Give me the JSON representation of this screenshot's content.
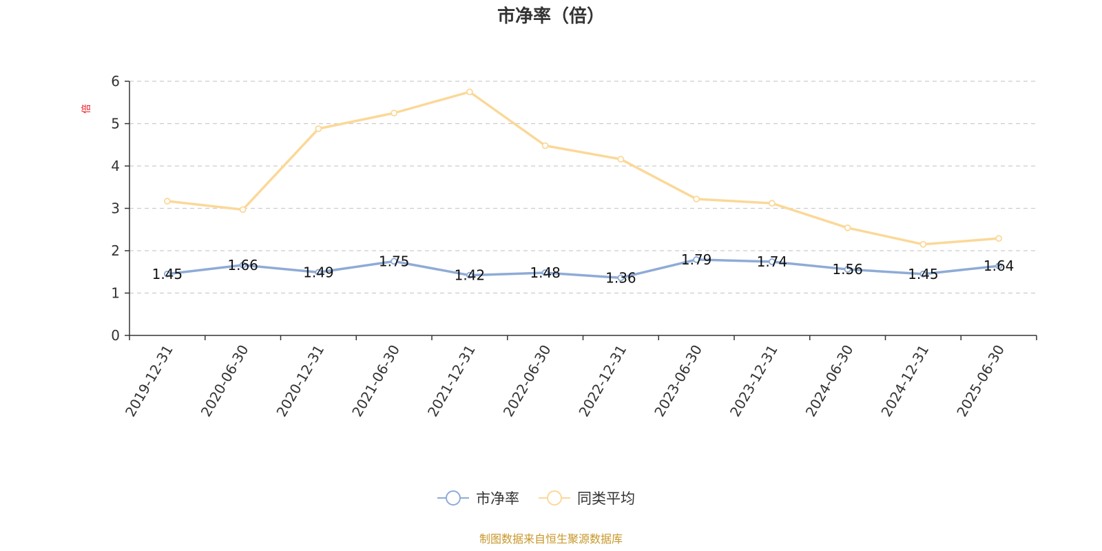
{
  "chart_data": {
    "type": "line",
    "title": "市净率（倍）",
    "ylabel": "倍",
    "xlabel": "",
    "ylim": [
      0,
      6
    ],
    "yticks": [
      0,
      1,
      2,
      3,
      4,
      5,
      6
    ],
    "grid": true,
    "legend_position": "bottom-center",
    "categories": [
      "2019-12-31",
      "2020-06-30",
      "2020-12-31",
      "2021-06-30",
      "2021-12-31",
      "2022-06-30",
      "2022-12-31",
      "2023-06-30",
      "2023-12-31",
      "2024-06-30",
      "2024-12-31",
      "2025-06-30"
    ],
    "series": [
      {
        "name": "市净率",
        "color": "#8eabd6",
        "values": [
          1.45,
          1.66,
          1.49,
          1.75,
          1.42,
          1.48,
          1.36,
          1.79,
          1.74,
          1.56,
          1.45,
          1.64
        ],
        "show_labels": true
      },
      {
        "name": "同类平均",
        "color": "#fbd898",
        "values": [
          3.17,
          2.97,
          4.88,
          5.25,
          5.75,
          4.48,
          4.16,
          3.22,
          3.12,
          2.54,
          2.15,
          2.29
        ],
        "show_labels": false
      }
    ],
    "source": "制图数据来自恒生聚源数据库"
  }
}
